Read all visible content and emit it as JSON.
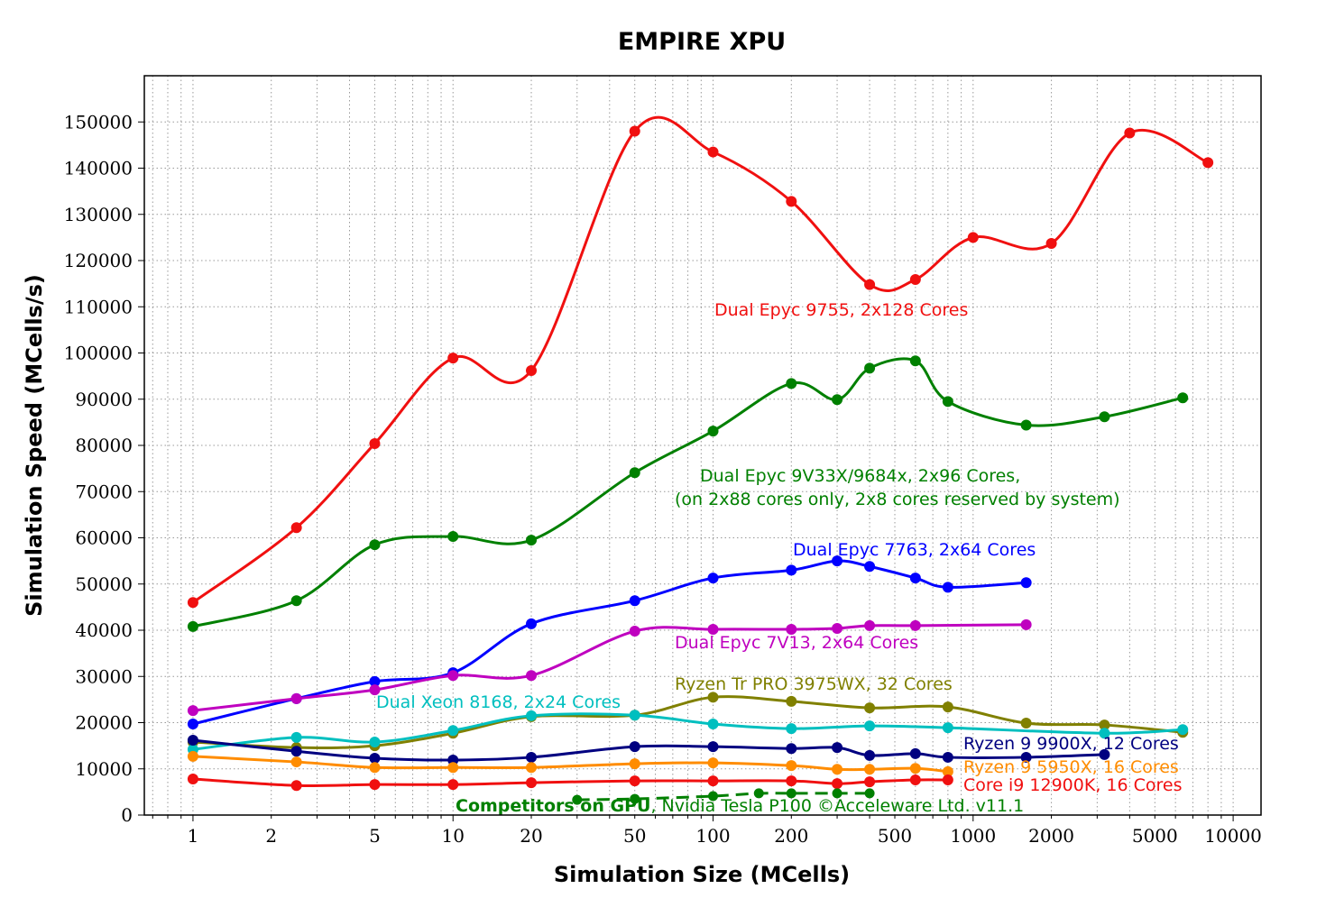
{
  "chart_data": {
    "type": "line",
    "title": "EMPIRE XPU",
    "xlabel": "Simulation Size (MCells)",
    "ylabel": "Simulation Speed (MCells/s)",
    "xscale": "log",
    "xlim": [
      0.65,
      12800
    ],
    "ylim": [
      0,
      160000
    ],
    "grid": true,
    "xticks": [
      1,
      2,
      5,
      10,
      20,
      50,
      100,
      200,
      500,
      1000,
      2000,
      5000,
      10000
    ],
    "xtick_labels": [
      "1",
      "2",
      "5",
      "10",
      "20",
      "50",
      "100",
      "200",
      "500",
      "1000",
      "2000",
      "5000",
      "10000"
    ],
    "yticks": [
      0,
      10000,
      20000,
      30000,
      40000,
      50000,
      60000,
      70000,
      80000,
      90000,
      100000,
      110000,
      120000,
      130000,
      140000,
      150000
    ],
    "ytick_labels": [
      "0",
      "10000",
      "20000",
      "30000",
      "40000",
      "50000",
      "60000",
      "70000",
      "80000",
      "90000",
      "100000",
      "110000",
      "120000",
      "130000",
      "140000",
      "150000"
    ],
    "series": [
      {
        "name": "Dual Epyc 9755, 2x128 Cores",
        "color": "#f01010",
        "x": [
          1,
          2.5,
          5,
          10,
          20,
          50,
          100,
          200,
          400,
          600,
          1000,
          2000,
          4000,
          8000
        ],
        "y": [
          46000,
          62200,
          80400,
          98900,
          96200,
          148000,
          143500,
          132800,
          114800,
          115900,
          125000,
          123700,
          147600,
          141200
        ]
      },
      {
        "name": "Dual Epyc 9V33X/9684x, 2x96 Cores,",
        "name_line2": "(on 2x88 cores only, 2x8 cores reserved by system)",
        "color": "#008000",
        "x": [
          1,
          2.5,
          5,
          10,
          20,
          50,
          100,
          200,
          300,
          400,
          600,
          800,
          1600,
          3200,
          6400
        ],
        "y": [
          40800,
          46400,
          58500,
          60300,
          59500,
          74100,
          83100,
          93400,
          89900,
          96700,
          98300,
          89500,
          84400,
          86200,
          90300
        ]
      },
      {
        "name": "Dual Epyc 7763, 2x64 Cores",
        "color": "#0000ff",
        "x": [
          1,
          2.5,
          5,
          10,
          20,
          50,
          100,
          200,
          300,
          400,
          600,
          800,
          1600
        ],
        "y": [
          19700,
          25200,
          28900,
          30800,
          41400,
          46400,
          51300,
          53000,
          55000,
          53800,
          51300,
          49300,
          50300
        ]
      },
      {
        "name": "Dual Epyc 7V13, 2x64 Cores",
        "color": "#bf00bf",
        "x": [
          1,
          2.5,
          5,
          10,
          20,
          50,
          100,
          200,
          300,
          400,
          600,
          1600
        ],
        "y": [
          22600,
          25200,
          27100,
          30200,
          30200,
          39800,
          40200,
          40200,
          40400,
          41000,
          41000,
          41200
        ]
      },
      {
        "name": "Ryzen Tr PRO 3975WX, 32 Cores",
        "color": "#808000",
        "x": [
          1,
          2.5,
          5,
          10,
          20,
          50,
          100,
          200,
          400,
          800,
          1600,
          3200,
          6400
        ],
        "y": [
          15800,
          14600,
          15000,
          17700,
          21300,
          21600,
          25500,
          24600,
          23200,
          23400,
          19900,
          19500,
          17900
        ]
      },
      {
        "name": "Dual Xeon 8168, 2x24 Cores",
        "color": "#00bfbf",
        "x": [
          1,
          2.5,
          5,
          10,
          20,
          50,
          100,
          200,
          400,
          800,
          3200,
          6400
        ],
        "y": [
          14200,
          16800,
          15800,
          18300,
          21500,
          21600,
          19700,
          18700,
          19300,
          18900,
          17700,
          18500
        ]
      },
      {
        "name": "Ryzen 9 9900X, 12 Cores",
        "color": "#000080",
        "x": [
          1,
          2.5,
          5,
          10,
          20,
          50,
          100,
          200,
          300,
          400,
          600,
          800,
          1600,
          3200
        ],
        "y": [
          16200,
          13800,
          12300,
          11900,
          12500,
          14800,
          14800,
          14400,
          14600,
          12900,
          13300,
          12500,
          12500,
          13100
        ]
      },
      {
        "name": "Ryzen 9 5950X, 16 Cores",
        "color": "#ff8c00",
        "x": [
          1,
          2.5,
          5,
          10,
          20,
          50,
          100,
          200,
          300,
          400,
          600,
          800
        ],
        "y": [
          12700,
          11500,
          10300,
          10300,
          10300,
          11100,
          11300,
          10700,
          9900,
          9900,
          10100,
          9400
        ]
      },
      {
        "name": "Core i9 12900K, 16 Cores",
        "color": "#f01010",
        "x": [
          1,
          2.5,
          5,
          10,
          20,
          50,
          100,
          200,
          300,
          400,
          600,
          800
        ],
        "y": [
          7800,
          6400,
          6600,
          6600,
          7000,
          7400,
          7400,
          7400,
          6800,
          7200,
          7600,
          7600
        ]
      },
      {
        "name": "Competitors on GPU",
        "name_suffix": ", Nvidia Tesla P100 ©Acceleware Ltd. v11.1",
        "color": "#008000",
        "dashed": true,
        "x": [
          30,
          50,
          100,
          150,
          200,
          300,
          400
        ],
        "y": [
          3300,
          3500,
          4100,
          4700,
          4700,
          4700,
          4700
        ]
      }
    ]
  }
}
